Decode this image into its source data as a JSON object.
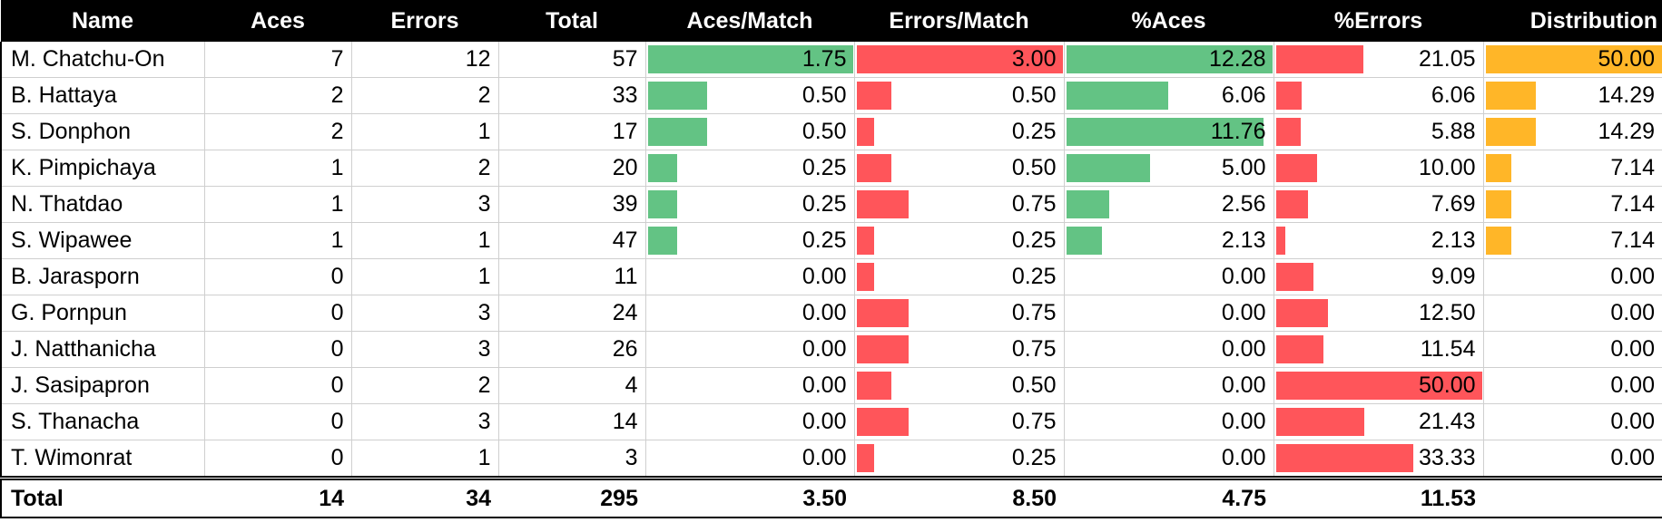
{
  "headers": [
    "Name",
    "Aces",
    "Errors",
    "Total",
    "Aces/Match",
    "Errors/Match",
    "%Aces",
    "%Errors",
    "Distribution"
  ],
  "rows": [
    {
      "name": "M. Chatchu-On",
      "aces": 7,
      "errors": 12,
      "total": 57,
      "aces_match": "1.75",
      "errors_match": "3.00",
      "pct_aces": "12.28",
      "pct_errors": "21.05",
      "distribution": "50.00"
    },
    {
      "name": "B. Hattaya",
      "aces": 2,
      "errors": 2,
      "total": 33,
      "aces_match": "0.50",
      "errors_match": "0.50",
      "pct_aces": "6.06",
      "pct_errors": "6.06",
      "distribution": "14.29"
    },
    {
      "name": "S. Donphon",
      "aces": 2,
      "errors": 1,
      "total": 17,
      "aces_match": "0.50",
      "errors_match": "0.25",
      "pct_aces": "11.76",
      "pct_errors": "5.88",
      "distribution": "14.29"
    },
    {
      "name": "K. Pimpichaya",
      "aces": 1,
      "errors": 2,
      "total": 20,
      "aces_match": "0.25",
      "errors_match": "0.50",
      "pct_aces": "5.00",
      "pct_errors": "10.00",
      "distribution": "7.14"
    },
    {
      "name": "N. Thatdao",
      "aces": 1,
      "errors": 3,
      "total": 39,
      "aces_match": "0.25",
      "errors_match": "0.75",
      "pct_aces": "2.56",
      "pct_errors": "7.69",
      "distribution": "7.14"
    },
    {
      "name": "S. Wipawee",
      "aces": 1,
      "errors": 1,
      "total": 47,
      "aces_match": "0.25",
      "errors_match": "0.25",
      "pct_aces": "2.13",
      "pct_errors": "2.13",
      "distribution": "7.14"
    },
    {
      "name": "B. Jarasporn",
      "aces": 0,
      "errors": 1,
      "total": 11,
      "aces_match": "0.00",
      "errors_match": "0.25",
      "pct_aces": "0.00",
      "pct_errors": "9.09",
      "distribution": "0.00"
    },
    {
      "name": "G. Pornpun",
      "aces": 0,
      "errors": 3,
      "total": 24,
      "aces_match": "0.00",
      "errors_match": "0.75",
      "pct_aces": "0.00",
      "pct_errors": "12.50",
      "distribution": "0.00"
    },
    {
      "name": "J. Natthanicha",
      "aces": 0,
      "errors": 3,
      "total": 26,
      "aces_match": "0.00",
      "errors_match": "0.75",
      "pct_aces": "0.00",
      "pct_errors": "11.54",
      "distribution": "0.00"
    },
    {
      "name": "J. Sasipapron",
      "aces": 0,
      "errors": 2,
      "total": 4,
      "aces_match": "0.00",
      "errors_match": "0.50",
      "pct_aces": "0.00",
      "pct_errors": "50.00",
      "distribution": "0.00"
    },
    {
      "name": "S. Thanacha",
      "aces": 0,
      "errors": 3,
      "total": 14,
      "aces_match": "0.00",
      "errors_match": "0.75",
      "pct_aces": "0.00",
      "pct_errors": "21.43",
      "distribution": "0.00"
    },
    {
      "name": "T. Wimonrat",
      "aces": 0,
      "errors": 1,
      "total": 3,
      "aces_match": "0.00",
      "errors_match": "0.25",
      "pct_aces": "0.00",
      "pct_errors": "33.33",
      "distribution": "0.00"
    }
  ],
  "totals": {
    "label": "Total",
    "aces": 14,
    "errors": 34,
    "total": 295,
    "aces_match": "3.50",
    "errors_match": "8.50",
    "pct_aces": "4.75",
    "pct_errors": "11.53",
    "distribution": ""
  },
  "colors": {
    "header_bg": "#000000",
    "aces_bar": "#63c384",
    "errors_bar": "#ff555a",
    "distribution_bar": "#ffb628"
  }
}
